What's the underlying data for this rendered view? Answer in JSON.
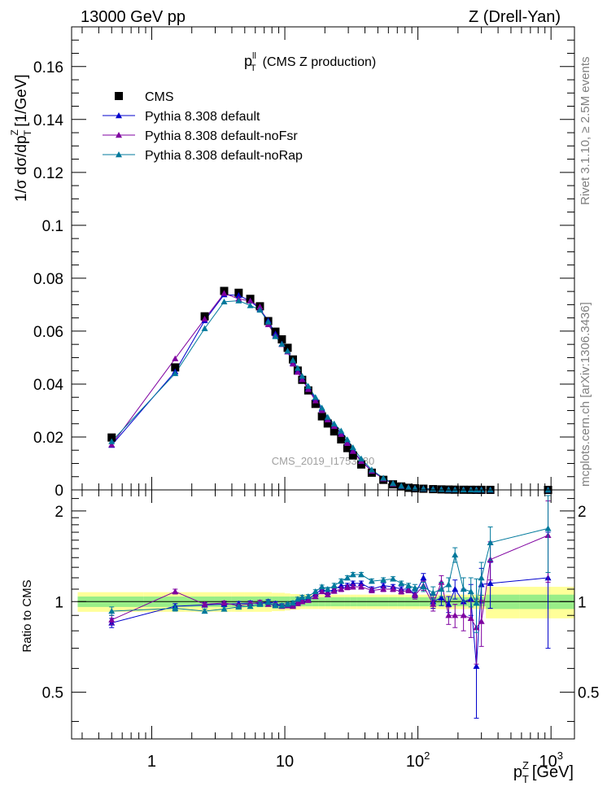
{
  "header": {
    "left": "13000 GeV pp",
    "right": "Z (Drell-Yan)"
  },
  "side_labels": {
    "rivet": "Rivet 3.1.10, ≥ 2.5M events",
    "mcplots": "mcplots.cern.ch [arXiv:1306.3436]"
  },
  "main_plot": {
    "title_var": "p",
    "title_sup": "ll",
    "title_sub": "T",
    "title_rest": "(CMS Z production)",
    "ylabel": "1/σ dσ/dp",
    "ylabel_sup": "Z",
    "ylabel_sub": "T",
    "ylabel_unit": "[1/GeV]",
    "watermark": "CMS_2019_I1753680"
  },
  "ratio_plot": {
    "ylabel": "Ratio to CMS"
  },
  "xaxis": {
    "label_var": "p",
    "label_sup": "Z",
    "label_sub": "T",
    "label_unit": "[GeV]"
  },
  "legend": [
    {
      "label": "CMS",
      "color": "#000000",
      "marker": "square"
    },
    {
      "label": "Pythia 8.308 default",
      "color": "#0000cc",
      "marker": "triangle"
    },
    {
      "label": "Pythia 8.308 default-noFsr",
      "color": "#7f00a0",
      "marker": "triangle"
    },
    {
      "label": "Pythia 8.308 default-noRap",
      "color": "#00799c",
      "marker": "triangle"
    }
  ],
  "chart_data": {
    "type": "scatter",
    "x_scale": "log",
    "xlim": [
      0.25,
      1500
    ],
    "ylim_main": [
      0,
      0.175
    ],
    "ylim_ratio": [
      0.35,
      2.35
    ],
    "y_ticks_main": [
      "0",
      "0.02",
      "0.04",
      "0.06",
      "0.08",
      "0.1",
      "0.12",
      "0.14",
      "0.16"
    ],
    "y_ticks_ratio": [
      "0.5",
      "1",
      "2"
    ],
    "x_ticks": [
      "1",
      "10",
      "10²",
      "10³"
    ],
    "x": [
      0.5,
      1.5,
      2.5,
      3.5,
      4.5,
      5.5,
      6.5,
      7.5,
      8.5,
      9.5,
      10.5,
      11.5,
      12.5,
      13.5,
      15,
      17,
      19,
      21,
      23.5,
      26.5,
      29.5,
      32.5,
      37.5,
      45,
      55,
      65,
      75,
      85,
      95,
      110,
      130,
      150,
      170,
      190,
      220,
      250,
      275,
      300,
      350,
      950
    ],
    "series": [
      {
        "name": "CMS",
        "values": [
          0.0198,
          0.0463,
          0.0656,
          0.0752,
          0.0745,
          0.0722,
          0.0694,
          0.0638,
          0.0598,
          0.0569,
          0.0537,
          0.0493,
          0.0451,
          0.0416,
          0.0376,
          0.0325,
          0.0278,
          0.0251,
          0.0221,
          0.0191,
          0.0158,
          0.013,
          0.0096,
          0.0065,
          0.0038,
          0.0021,
          0.0013,
          0.0008,
          0.0006,
          0.00045,
          0.00029,
          0.00019,
          0.00013,
          9e-05,
          6e-05,
          4.5e-05,
          3e-05,
          2.3e-05,
          1.5e-05,
          1.5e-06
        ]
      },
      {
        "name": "Pythia 8.308 default",
        "values": [
          0.0169,
          0.0447,
          0.064,
          0.0738,
          0.0735,
          0.0714,
          0.0683,
          0.064,
          0.059,
          0.0552,
          0.0522,
          0.048,
          0.045,
          0.042,
          0.0384,
          0.0345,
          0.0306,
          0.027,
          0.0243,
          0.0216,
          0.0179,
          0.0149,
          0.011,
          0.0072,
          0.0043,
          0.0024,
          0.0014,
          0.0009,
          0.0006,
          0.0005,
          0.0003,
          0.0002,
          0.00013,
          9e-05,
          6e-05,
          4.5e-05,
          3e-05,
          2.3e-05,
          1.5e-05,
          1.8e-06
        ]
      },
      {
        "name": "Pythia 8.308 default-noFsr",
        "values": [
          0.0171,
          0.0496,
          0.0646,
          0.0743,
          0.0722,
          0.0714,
          0.0692,
          0.0625,
          0.0583,
          0.055,
          0.0522,
          0.0476,
          0.0445,
          0.0417,
          0.038,
          0.0337,
          0.03,
          0.0265,
          0.024,
          0.021,
          0.0176,
          0.0146,
          0.0108,
          0.0071,
          0.0042,
          0.0023,
          0.0014,
          0.0009,
          0.0006,
          0.0005,
          0.0003,
          0.0002,
          0.00013,
          9e-05,
          6e-05,
          4.5e-05,
          3e-05,
          2.3e-05,
          1.5e-05,
          2.5e-06
        ]
      },
      {
        "name": "Pythia 8.308 default-noRap",
        "values": [
          0.0183,
          0.044,
          0.061,
          0.0711,
          0.0715,
          0.0697,
          0.068,
          0.0635,
          0.058,
          0.0551,
          0.0525,
          0.049,
          0.046,
          0.043,
          0.0392,
          0.035,
          0.031,
          0.0275,
          0.025,
          0.0223,
          0.019,
          0.016,
          0.0118,
          0.0076,
          0.0045,
          0.0025,
          0.0015,
          0.0009,
          0.0006,
          0.0005,
          0.0003,
          0.0002,
          0.00013,
          9e-05,
          6e-05,
          4.5e-05,
          3e-05,
          2.3e-05,
          1.5e-05,
          2.7e-06
        ]
      }
    ],
    "ratio": [
      {
        "name": "Pythia 8.308 default",
        "values": [
          0.85,
          0.965,
          0.975,
          0.98,
          0.985,
          0.99,
          0.985,
          1.0,
          0.985,
          0.97,
          0.97,
          0.975,
          0.995,
          1.01,
          1.02,
          1.06,
          1.1,
          1.075,
          1.1,
          1.13,
          1.13,
          1.15,
          1.15,
          1.1,
          1.13,
          1.12,
          1.1,
          1.1,
          1.06,
          1.2,
          1.0,
          1.03,
          0.98,
          1.1,
          1.0,
          1.02,
          0.61,
          1.14,
          1.15,
          1.2
        ],
        "err": [
          0.03,
          0.02,
          0.015,
          0.015,
          0.015,
          0.015,
          0.015,
          0.015,
          0.015,
          0.015,
          0.015,
          0.015,
          0.015,
          0.015,
          0.015,
          0.015,
          0.015,
          0.015,
          0.02,
          0.02,
          0.02,
          0.02,
          0.02,
          0.02,
          0.02,
          0.02,
          0.02,
          0.02,
          0.03,
          0.04,
          0.05,
          0.06,
          0.06,
          0.08,
          0.1,
          0.12,
          0.2,
          0.15,
          0.2,
          0.5
        ]
      },
      {
        "name": "Pythia 8.308 default-noFsr",
        "values": [
          0.87,
          1.08,
          0.98,
          0.99,
          0.97,
          0.985,
          0.995,
          0.98,
          0.975,
          0.965,
          0.97,
          0.965,
          0.985,
          1.0,
          1.01,
          1.04,
          1.08,
          1.055,
          1.085,
          1.1,
          1.115,
          1.12,
          1.12,
          1.09,
          1.1,
          1.1,
          1.08,
          1.09,
          1.05,
          1.13,
          0.98,
          1.16,
          0.9,
          0.9,
          0.9,
          0.88,
          0.82,
          0.86,
          1.38,
          1.66
        ],
        "err": [
          0.03,
          0.02,
          0.015,
          0.015,
          0.015,
          0.015,
          0.015,
          0.015,
          0.015,
          0.015,
          0.015,
          0.015,
          0.015,
          0.015,
          0.015,
          0.015,
          0.015,
          0.015,
          0.02,
          0.02,
          0.02,
          0.02,
          0.02,
          0.02,
          0.02,
          0.02,
          0.02,
          0.02,
          0.03,
          0.04,
          0.05,
          0.06,
          0.06,
          0.08,
          0.1,
          0.12,
          0.2,
          0.15,
          0.2,
          0.5
        ]
      },
      {
        "name": "Pythia 8.308 default-noRap",
        "values": [
          0.93,
          0.95,
          0.93,
          0.945,
          0.96,
          0.965,
          0.98,
          0.995,
          0.97,
          0.97,
          0.98,
          0.99,
          1.02,
          1.035,
          1.04,
          1.08,
          1.12,
          1.1,
          1.13,
          1.17,
          1.2,
          1.23,
          1.23,
          1.17,
          1.18,
          1.19,
          1.15,
          1.13,
          1.11,
          1.12,
          1.07,
          1.1,
          1.14,
          1.43,
          1.1,
          1.08,
          0.99,
          1.2,
          1.57,
          1.75
        ],
        "err": [
          0.03,
          0.02,
          0.015,
          0.015,
          0.015,
          0.015,
          0.015,
          0.015,
          0.015,
          0.015,
          0.015,
          0.015,
          0.015,
          0.015,
          0.015,
          0.015,
          0.015,
          0.015,
          0.02,
          0.02,
          0.02,
          0.02,
          0.02,
          0.02,
          0.02,
          0.02,
          0.02,
          0.02,
          0.03,
          0.04,
          0.05,
          0.06,
          0.06,
          0.08,
          0.1,
          0.12,
          0.2,
          0.15,
          0.2,
          0.5
        ]
      }
    ],
    "data_band_green": [
      0.04,
      0.04,
      0.04,
      0.04,
      0.04,
      0.04,
      0.04,
      0.04,
      0.04,
      0.04,
      0.04,
      0.04,
      0.035,
      0.035,
      0.035,
      0.035,
      0.035,
      0.035,
      0.035,
      0.035,
      0.035,
      0.035,
      0.035,
      0.035,
      0.035,
      0.035,
      0.035,
      0.035,
      0.035,
      0.035,
      0.035,
      0.035,
      0.035,
      0.035,
      0.035,
      0.035,
      0.035,
      0.035,
      0.055,
      0.055
    ],
    "data_band_yellow": [
      0.075,
      0.075,
      0.075,
      0.075,
      0.075,
      0.075,
      0.075,
      0.075,
      0.07,
      0.07,
      0.065,
      0.06,
      0.06,
      0.055,
      0.055,
      0.055,
      0.055,
      0.055,
      0.055,
      0.055,
      0.055,
      0.055,
      0.055,
      0.055,
      0.055,
      0.055,
      0.055,
      0.055,
      0.055,
      0.055,
      0.055,
      0.055,
      0.055,
      0.055,
      0.055,
      0.055,
      0.055,
      0.055,
      0.12,
      0.12
    ]
  }
}
